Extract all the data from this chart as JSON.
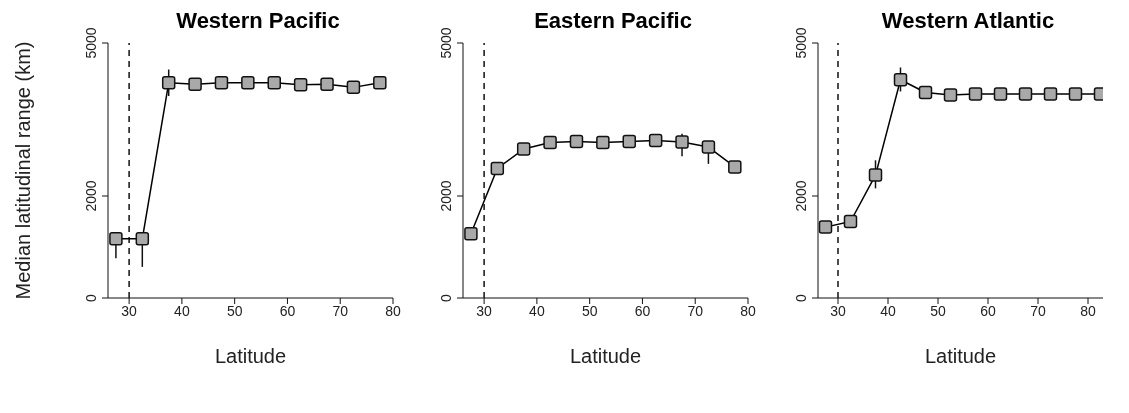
{
  "chart_data": [
    {
      "type": "line",
      "title": "Western Pacific",
      "xlabel": "Latitude",
      "ylabel": "Median latitudinal range (km)",
      "x": [
        27.5,
        32.5,
        37.5,
        42.5,
        47.5,
        52.5,
        57.5,
        62.5,
        67.5,
        72.5,
        77.5
      ],
      "values": [
        1160,
        1160,
        4220,
        4190,
        4220,
        4220,
        4220,
        4180,
        4190,
        4130,
        4220
      ],
      "errors": [
        [
          780,
          1250
        ],
        [
          610,
          1250
        ],
        [
          3960,
          4480
        ],
        null,
        null,
        null,
        null,
        null,
        null,
        null,
        null
      ],
      "color": "#000000",
      "marker": "square",
      "line_style": "solid",
      "xlim": [
        26,
        80
      ],
      "xticks": [
        30,
        40,
        50,
        60,
        70,
        80
      ],
      "ylim": [
        0,
        5000
      ],
      "yticks": [
        0,
        2000,
        5000
      ],
      "grid": false,
      "legend": false,
      "ref_lines": [
        {
          "axis": "x",
          "value": 30,
          "line_style": "dashed"
        }
      ]
    },
    {
      "type": "line",
      "title": "Eastern Pacific",
      "xlabel": "Latitude",
      "x": [
        27.5,
        32.5,
        37.5,
        42.5,
        47.5,
        52.5,
        57.5,
        62.5,
        67.5,
        72.5,
        77.5
      ],
      "values": [
        1260,
        2540,
        2920,
        3050,
        3070,
        3050,
        3070,
        3090,
        3060,
        2960,
        2570
      ],
      "errors": [
        null,
        null,
        null,
        null,
        null,
        null,
        null,
        null,
        [
          2780,
          3220
        ],
        [
          2630,
          3050
        ],
        null
      ],
      "color": "#000000",
      "marker": "square",
      "line_style": "solid",
      "xlim": [
        26,
        80
      ],
      "xticks": [
        30,
        40,
        50,
        60,
        70,
        80
      ],
      "ylim": [
        0,
        5000
      ],
      "yticks": [
        0,
        2000,
        5000
      ],
      "grid": false,
      "legend": false,
      "ref_lines": [
        {
          "axis": "x",
          "value": 30,
          "line_style": "dashed"
        }
      ]
    },
    {
      "type": "line",
      "title": "Western Atlantic",
      "xlabel": "Latitude",
      "x": [
        27.5,
        32.5,
        37.5,
        42.5,
        47.5,
        52.5,
        57.5,
        62.5,
        67.5,
        72.5,
        77.5,
        82.5
      ],
      "values": [
        1390,
        1500,
        2410,
        4280,
        4030,
        3980,
        4000,
        4000,
        4000,
        4000,
        4000,
        4000
      ],
      "errors": [
        null,
        null,
        [
          2150,
          2700
        ],
        [
          4050,
          4520
        ],
        null,
        null,
        null,
        null,
        null,
        null,
        null,
        null
      ],
      "color": "#000000",
      "marker": "square",
      "line_style": "solid",
      "xlim": [
        26,
        83
      ],
      "xticks": [
        30,
        40,
        50,
        60,
        70,
        80
      ],
      "ylim": [
        0,
        5000
      ],
      "yticks": [
        0,
        2000,
        5000
      ],
      "grid": false,
      "legend": false,
      "ref_lines": [
        {
          "axis": "x",
          "value": 30,
          "line_style": "dashed"
        }
      ]
    }
  ]
}
